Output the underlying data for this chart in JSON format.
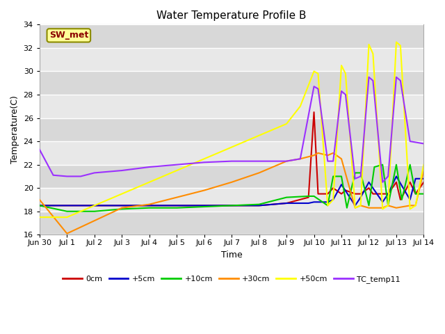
{
  "title": "Water Temperature Profile B",
  "xlabel": "Time",
  "ylabel": "Temperature(C)",
  "ylim": [
    16,
    34
  ],
  "xlim": [
    0,
    14
  ],
  "background_color": "#ffffff",
  "plot_bg_color": "#e0e0e0",
  "annotation_label": "SW_met",
  "annotation_fg": "#8b0000",
  "annotation_bg": "#ffff99",
  "xtick_labels": [
    "Jun 30",
    "Jul 1",
    "Jul 2",
    "Jul 3",
    "Jul 4",
    "Jul 5",
    "Jul 6",
    "Jul 7",
    "Jul 8",
    "Jul 9",
    "Jul 10",
    "Jul 11",
    "Jul 12",
    "Jul 13",
    "Jul 14"
  ],
  "xtick_positions": [
    0,
    1,
    2,
    3,
    4,
    5,
    6,
    7,
    8,
    9,
    10,
    11,
    12,
    13,
    14
  ],
  "ytick_positions": [
    16,
    18,
    20,
    22,
    24,
    26,
    28,
    30,
    32,
    34
  ],
  "stripe_colors": [
    "#d8d8d8",
    "#e8e8e8"
  ],
  "series": {
    "0cm": {
      "color": "#cc0000",
      "x": [
        0,
        1,
        2,
        3,
        4,
        5,
        6,
        7,
        8,
        9,
        9.8,
        10.0,
        10.15,
        10.5,
        10.7,
        11.0,
        11.15,
        11.5,
        11.7,
        12.0,
        12.15,
        12.5,
        12.7,
        13.0,
        13.15,
        13.5,
        13.7,
        14
      ],
      "y": [
        18.5,
        18.5,
        18.5,
        18.5,
        18.5,
        18.5,
        18.5,
        18.5,
        18.5,
        18.7,
        19.2,
        26.5,
        19.5,
        19.5,
        20.0,
        19.5,
        19.8,
        19.5,
        19.5,
        20.0,
        19.5,
        19.5,
        19.5,
        20.5,
        19.0,
        20.5,
        19.5,
        20.5
      ]
    },
    "+5cm": {
      "color": "#0000cc",
      "x": [
        0,
        1,
        2,
        3,
        4,
        5,
        6,
        7,
        8,
        9,
        9.8,
        10.0,
        10.5,
        10.7,
        11.0,
        11.5,
        11.7,
        12.0,
        12.5,
        12.7,
        13.0,
        13.5,
        13.7,
        14
      ],
      "y": [
        18.5,
        18.5,
        18.5,
        18.5,
        18.5,
        18.5,
        18.5,
        18.5,
        18.5,
        18.7,
        18.7,
        18.8,
        18.8,
        19.0,
        20.3,
        18.5,
        19.2,
        20.5,
        18.8,
        19.5,
        21.0,
        19.0,
        20.8,
        20.8
      ]
    },
    "+10cm": {
      "color": "#00cc00",
      "x": [
        0,
        1,
        2,
        3,
        4,
        5,
        6,
        7,
        8,
        9,
        9.8,
        10.0,
        10.5,
        10.7,
        11.0,
        11.2,
        11.5,
        11.7,
        12.0,
        12.2,
        12.5,
        12.7,
        13.0,
        13.2,
        13.5,
        13.7,
        14
      ],
      "y": [
        18.5,
        18.0,
        18.0,
        18.2,
        18.3,
        18.3,
        18.4,
        18.5,
        18.6,
        19.2,
        19.3,
        19.3,
        18.5,
        21.0,
        21.0,
        18.3,
        21.3,
        21.3,
        18.5,
        21.8,
        22.0,
        18.5,
        22.0,
        19.0,
        22.0,
        19.5,
        19.5
      ]
    },
    "+30cm": {
      "color": "#ff8c00",
      "x": [
        0,
        1,
        2,
        3,
        4,
        5,
        6,
        7,
        8,
        9,
        9.5,
        10.0,
        10.15,
        10.5,
        10.7,
        11.0,
        11.5,
        11.7,
        12.0,
        12.5,
        12.7,
        13.0,
        13.5,
        13.7,
        14
      ],
      "y": [
        19.0,
        16.1,
        17.2,
        18.3,
        18.6,
        19.2,
        19.8,
        20.5,
        21.3,
        22.3,
        22.5,
        22.8,
        23.0,
        22.8,
        23.0,
        22.5,
        18.3,
        18.5,
        18.3,
        18.3,
        18.5,
        18.3,
        18.5,
        18.5,
        21.5
      ]
    },
    "+50cm": {
      "color": "#ffff00",
      "x": [
        0,
        1,
        2,
        3,
        4,
        5,
        6,
        7,
        8,
        9,
        9.5,
        10.0,
        10.15,
        10.5,
        10.7,
        11.0,
        11.15,
        11.5,
        11.7,
        12.0,
        12.15,
        12.5,
        12.7,
        13.0,
        13.15,
        13.5,
        13.7,
        14
      ],
      "y": [
        17.5,
        17.5,
        18.5,
        19.5,
        20.5,
        21.5,
        22.5,
        23.5,
        24.5,
        25.5,
        27.0,
        30.0,
        29.8,
        18.5,
        19.0,
        30.5,
        29.8,
        18.3,
        18.5,
        32.3,
        31.5,
        18.2,
        18.5,
        32.5,
        32.2,
        18.2,
        18.5,
        22.0
      ]
    },
    "TC_temp11": {
      "color": "#9b30ff",
      "x": [
        0,
        0.5,
        1.0,
        1.5,
        2,
        3,
        4,
        5,
        6,
        7,
        8,
        9,
        9.5,
        10.0,
        10.15,
        10.5,
        10.7,
        11.0,
        11.15,
        11.5,
        11.7,
        12.0,
        12.15,
        12.5,
        12.7,
        13.0,
        13.15,
        13.5,
        14
      ],
      "y": [
        23.3,
        21.1,
        21.0,
        21.0,
        21.3,
        21.5,
        21.8,
        22.0,
        22.2,
        22.3,
        22.3,
        22.3,
        22.5,
        28.7,
        28.5,
        22.3,
        22.3,
        28.3,
        28.0,
        20.8,
        21.0,
        29.5,
        29.2,
        20.5,
        21.0,
        29.5,
        29.2,
        24.0,
        23.8
      ]
    }
  }
}
